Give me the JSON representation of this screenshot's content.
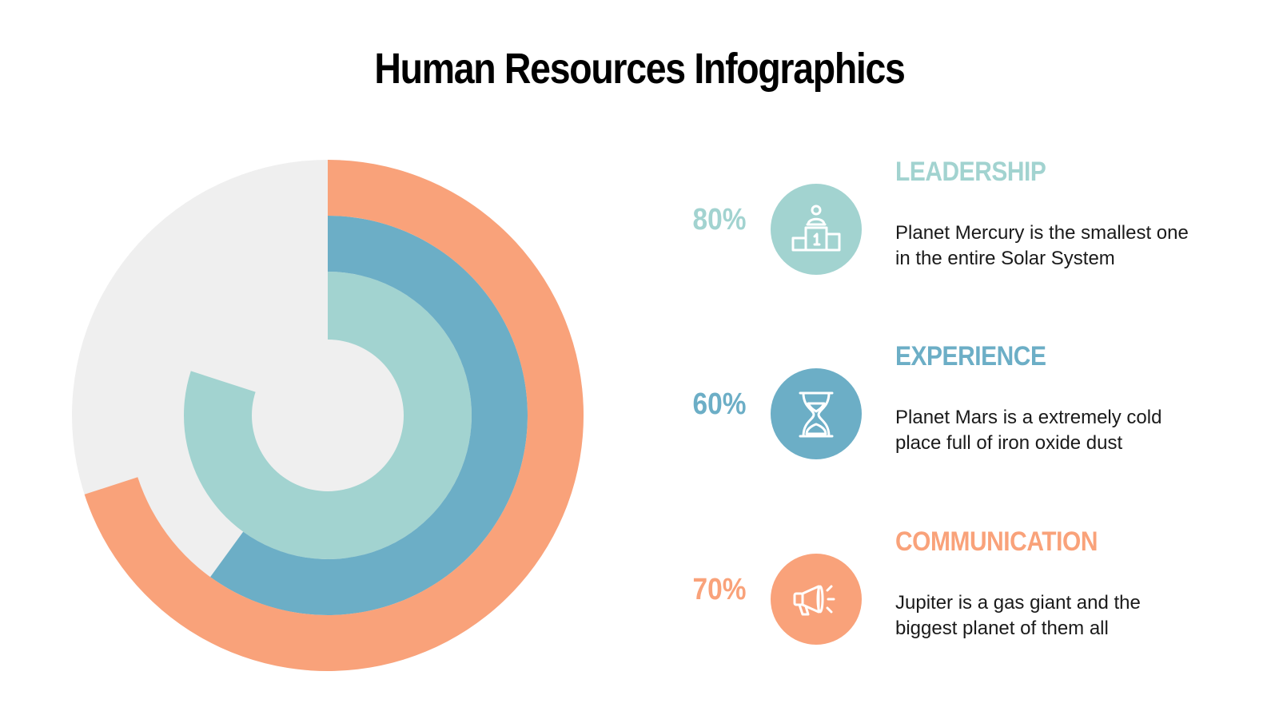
{
  "title": "Human Resources Infographics",
  "colors": {
    "background_ring": "#efefef",
    "leadership": "#a2d3d0",
    "experience": "#6caec6",
    "communication": "#f9a27a"
  },
  "chart_data": {
    "type": "radial-bar",
    "series": [
      {
        "name": "LEADERSHIP",
        "value": 80,
        "color": "#a2d3d0",
        "ring": "inner"
      },
      {
        "name": "EXPERIENCE",
        "value": 60,
        "color": "#6caec6",
        "ring": "middle"
      },
      {
        "name": "COMMUNICATION",
        "value": 70,
        "color": "#f9a27a",
        "ring": "outer"
      }
    ],
    "max": 100,
    "direction": "clockwise from top"
  },
  "items": [
    {
      "percent": "80%",
      "heading": "LEADERSHIP",
      "description_line1": "Planet Mercury is the smallest one",
      "description_line2": "in the entire Solar System",
      "icon": "podium-icon",
      "color": "#a2d3d0"
    },
    {
      "percent": "60%",
      "heading": "EXPERIENCE",
      "description_line1": "Planet Mars is a extremely cold",
      "description_line2": "place full of iron oxide dust",
      "icon": "hourglass-icon",
      "color": "#6caec6"
    },
    {
      "percent": "70%",
      "heading": "COMMUNICATION",
      "description_line1": "Jupiter is a gas giant and the",
      "description_line2": "biggest planet of them all",
      "icon": "megaphone-icon",
      "color": "#f9a27a"
    }
  ]
}
